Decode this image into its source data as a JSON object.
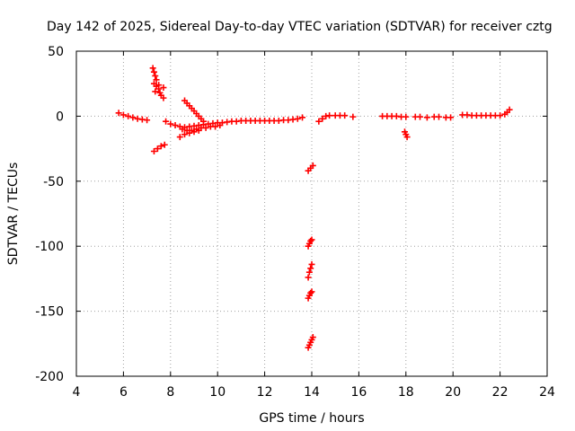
{
  "chart_data": {
    "type": "scatter",
    "title": "Day 142 of 2025, Sidereal Day-to-day VTEC variation (SDTVAR) for receiver cztg",
    "xlabel": "GPS time / hours",
    "ylabel": "SDTVAR / TECUs",
    "xlim": [
      4,
      24
    ],
    "ylim": [
      -200,
      50
    ],
    "xticks": [
      4,
      6,
      8,
      10,
      12,
      14,
      16,
      18,
      20,
      22,
      24
    ],
    "yticks": [
      -200,
      -150,
      -100,
      -50,
      0,
      50
    ],
    "grid": true,
    "marker": "plus",
    "color": "#ff0000",
    "series": [
      {
        "name": "SDTVAR",
        "points": [
          [
            5.8,
            2.5
          ],
          [
            6.0,
            1.0
          ],
          [
            6.2,
            0.0
          ],
          [
            6.4,
            -1.0
          ],
          [
            6.6,
            -2.0
          ],
          [
            6.8,
            -2.5
          ],
          [
            7.0,
            -3.0
          ],
          [
            7.25,
            37
          ],
          [
            7.3,
            34
          ],
          [
            7.35,
            31
          ],
          [
            7.4,
            28
          ],
          [
            7.3,
            25
          ],
          [
            7.4,
            23
          ],
          [
            7.5,
            21
          ],
          [
            7.35,
            19
          ],
          [
            7.55,
            18
          ],
          [
            7.6,
            16
          ],
          [
            7.7,
            14
          ],
          [
            7.5,
            24
          ],
          [
            7.7,
            22
          ],
          [
            7.3,
            -27
          ],
          [
            7.45,
            -25
          ],
          [
            7.6,
            -23
          ],
          [
            7.75,
            -22
          ],
          [
            7.8,
            -4
          ],
          [
            8.0,
            -6
          ],
          [
            8.2,
            -7
          ],
          [
            8.4,
            -8
          ],
          [
            8.6,
            -8.5
          ],
          [
            8.8,
            -8
          ],
          [
            9.0,
            -7.5
          ],
          [
            9.2,
            -7
          ],
          [
            9.4,
            -6.5
          ],
          [
            9.6,
            -6
          ],
          [
            9.8,
            -5.5
          ],
          [
            10.0,
            -5
          ],
          [
            10.2,
            -5
          ],
          [
            10.4,
            -4.5
          ],
          [
            10.6,
            -4
          ],
          [
            10.8,
            -4
          ],
          [
            11.0,
            -3.5
          ],
          [
            11.2,
            -3.5
          ],
          [
            11.4,
            -3.5
          ],
          [
            11.6,
            -3.5
          ],
          [
            11.8,
            -3.5
          ],
          [
            12.0,
            -3.5
          ],
          [
            12.2,
            -3.5
          ],
          [
            12.4,
            -3.5
          ],
          [
            12.6,
            -3.5
          ],
          [
            12.8,
            -3.0
          ],
          [
            13.0,
            -3.0
          ],
          [
            13.2,
            -2.5
          ],
          [
            13.4,
            -2.0
          ],
          [
            13.6,
            -1.0
          ],
          [
            8.5,
            -10
          ],
          [
            8.7,
            -11
          ],
          [
            8.9,
            -11
          ],
          [
            9.1,
            -10
          ],
          [
            9.3,
            -9
          ],
          [
            9.5,
            -9
          ],
          [
            9.7,
            -8
          ],
          [
            9.9,
            -8
          ],
          [
            10.1,
            -7
          ],
          [
            8.4,
            -16
          ],
          [
            8.6,
            -14
          ],
          [
            8.8,
            -13
          ],
          [
            9.0,
            -12
          ],
          [
            9.2,
            -11
          ],
          [
            8.6,
            12
          ],
          [
            8.7,
            10
          ],
          [
            8.8,
            8
          ],
          [
            8.9,
            6
          ],
          [
            9.0,
            4
          ],
          [
            9.1,
            2
          ],
          [
            9.2,
            0
          ],
          [
            9.3,
            -2
          ],
          [
            9.4,
            -4
          ],
          [
            13.85,
            -42
          ],
          [
            13.95,
            -40
          ],
          [
            14.05,
            -38
          ],
          [
            13.85,
            -100
          ],
          [
            13.9,
            -98
          ],
          [
            13.95,
            -96
          ],
          [
            14.0,
            -95
          ],
          [
            13.85,
            -124
          ],
          [
            13.9,
            -120
          ],
          [
            13.95,
            -117
          ],
          [
            14.0,
            -114
          ],
          [
            13.85,
            -140
          ],
          [
            13.9,
            -138
          ],
          [
            13.95,
            -136
          ],
          [
            14.0,
            -135
          ],
          [
            13.85,
            -178
          ],
          [
            13.9,
            -176
          ],
          [
            13.95,
            -174
          ],
          [
            14.0,
            -172
          ],
          [
            14.05,
            -170
          ],
          [
            14.3,
            -4
          ],
          [
            14.45,
            -2
          ],
          [
            14.6,
            0
          ],
          [
            14.75,
            0.5
          ],
          [
            15.0,
            0.5
          ],
          [
            15.2,
            0.5
          ],
          [
            15.4,
            0.5
          ],
          [
            15.75,
            -0.5
          ],
          [
            17.0,
            0
          ],
          [
            17.2,
            0
          ],
          [
            17.4,
            0
          ],
          [
            17.6,
            0
          ],
          [
            17.8,
            -0.5
          ],
          [
            18.0,
            -0.5
          ],
          [
            17.95,
            -12
          ],
          [
            18.0,
            -14
          ],
          [
            18.05,
            -16
          ],
          [
            18.4,
            -0.5
          ],
          [
            18.6,
            -0.5
          ],
          [
            18.9,
            -1
          ],
          [
            19.2,
            -0.5
          ],
          [
            19.4,
            -0.5
          ],
          [
            19.7,
            -1
          ],
          [
            19.9,
            -1
          ],
          [
            20.4,
            1
          ],
          [
            20.6,
            1
          ],
          [
            20.8,
            0.5
          ],
          [
            21.0,
            0.5
          ],
          [
            21.2,
            0.5
          ],
          [
            21.4,
            0.5
          ],
          [
            21.6,
            0.5
          ],
          [
            21.8,
            0.5
          ],
          [
            22.0,
            0.5
          ],
          [
            22.2,
            1.5
          ],
          [
            22.3,
            3
          ],
          [
            22.4,
            5
          ]
        ]
      }
    ]
  }
}
